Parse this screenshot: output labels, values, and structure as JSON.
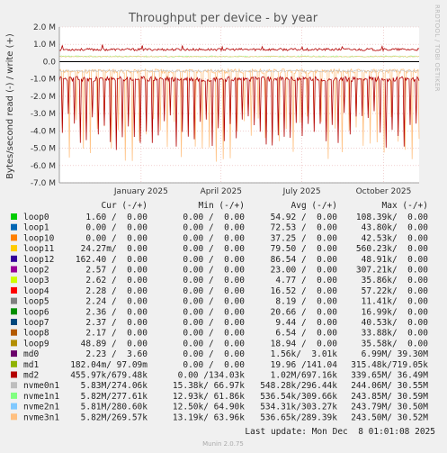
{
  "chart_data": {
    "type": "line",
    "title": "Throughput per device - by year",
    "ylabel": "Bytes/second read (-) / write (+)",
    "side_label": "RRDTOOL / TOBI OETIKER",
    "ylim": [
      -7000000,
      2000000
    ],
    "y_ticks": [
      {
        "value": 2000000,
        "label": "2.0 M"
      },
      {
        "value": 1000000,
        "label": "1.0 M"
      },
      {
        "value": 0,
        "label": "0.0"
      },
      {
        "value": -1000000,
        "label": "-1.0 M"
      },
      {
        "value": -2000000,
        "label": "-2.0 M"
      },
      {
        "value": -3000000,
        "label": "-3.0 M"
      },
      {
        "value": -4000000,
        "label": "-4.0 M"
      },
      {
        "value": -5000000,
        "label": "-5.0 M"
      },
      {
        "value": -6000000,
        "label": "-6.0 M"
      },
      {
        "value": -7000000,
        "label": "-7.0 M"
      }
    ],
    "x_range_days": [
      0,
      405
    ],
    "x_ticks": [
      {
        "day": 92,
        "label": "January 2025"
      },
      {
        "day": 182,
        "label": "April 2025"
      },
      {
        "day": 273,
        "label": "July 2025"
      },
      {
        "day": 365,
        "label": "October 2025"
      }
    ],
    "grid": true,
    "columns": {
      "cur": "Cur (-/+)",
      "min": "Min (-/+)",
      "avg": "Avg (-/+)",
      "max": "Max (-/+)"
    },
    "series": [
      {
        "name": "loop0",
        "color": "#00cc00",
        "cur": "1.60 /  0.00",
        "min": "0.00 /  0.00",
        "avg": "54.92 /  0.00",
        "max": "108.39k/  0.00"
      },
      {
        "name": "loop1",
        "color": "#0066b3",
        "cur": "0.00 /  0.00",
        "min": "0.00 /  0.00",
        "avg": "72.53 /  0.00",
        "max": "43.80k/  0.00"
      },
      {
        "name": "loop10",
        "color": "#ff8000",
        "cur": "0.00 /  0.00",
        "min": "0.00 /  0.00",
        "avg": "37.25 /  0.00",
        "max": "42.53k/  0.00"
      },
      {
        "name": "loop11",
        "color": "#ffcc00",
        "cur": "24.27m/  0.00",
        "min": "0.00 /  0.00",
        "avg": "79.50 /  0.00",
        "max": "560.23k/  0.00"
      },
      {
        "name": "loop12",
        "color": "#330099",
        "cur": "162.40 /  0.00",
        "min": "0.00 /  0.00",
        "avg": "86.54 /  0.00",
        "max": "48.91k/  0.00"
      },
      {
        "name": "loop2",
        "color": "#990099",
        "cur": "2.57 /  0.00",
        "min": "0.00 /  0.00",
        "avg": "23.00 /  0.00",
        "max": "307.21k/  0.00"
      },
      {
        "name": "loop3",
        "color": "#ccff00",
        "cur": "2.62 /  0.00",
        "min": "0.00 /  0.00",
        "avg": "4.77 /  0.00",
        "max": "35.86k/  0.00"
      },
      {
        "name": "loop4",
        "color": "#ff0000",
        "cur": "2.28 /  0.00",
        "min": "0.00 /  0.00",
        "avg": "16.52 /  0.00",
        "max": "57.22k/  0.00"
      },
      {
        "name": "loop5",
        "color": "#808080",
        "cur": "2.24 /  0.00",
        "min": "0.00 /  0.00",
        "avg": "8.19 /  0.00",
        "max": "11.41k/  0.00"
      },
      {
        "name": "loop6",
        "color": "#008f00",
        "cur": "2.36 /  0.00",
        "min": "0.00 /  0.00",
        "avg": "20.66 /  0.00",
        "max": "16.99k/  0.00"
      },
      {
        "name": "loop7",
        "color": "#00487d",
        "cur": "2.37 /  0.00",
        "min": "0.00 /  0.00",
        "avg": "9.44 /  0.00",
        "max": "40.53k/  0.00"
      },
      {
        "name": "loop8",
        "color": "#b35a00",
        "cur": "2.17 /  0.00",
        "min": "0.00 /  0.00",
        "avg": "6.54 /  0.00",
        "max": "33.88k/  0.00"
      },
      {
        "name": "loop9",
        "color": "#b38f00",
        "cur": "48.89 /  0.00",
        "min": "0.00 /  0.00",
        "avg": "18.94 /  0.00",
        "max": "35.58k/  0.00"
      },
      {
        "name": "md0",
        "color": "#6b006b",
        "cur": "2.23 /  3.60",
        "min": "0.00 /  0.00",
        "avg": "1.56k/  3.01k",
        "max": "6.99M/ 39.30M"
      },
      {
        "name": "md1",
        "color": "#8fb300",
        "cur": "182.04m/ 97.09m",
        "min": "0.00 /  0.00",
        "avg": "19.96 /141.04",
        "max": "315.48k/719.05k"
      },
      {
        "name": "md2",
        "color": "#b30000",
        "cur": "455.97k/679.48k",
        "min": "0.00 /134.03k",
        "avg": "1.02M/697.16k",
        "max": "339.65M/ 36.49M"
      },
      {
        "name": "nvme0n1",
        "color": "#bebebe",
        "cur": "5.83M/274.06k",
        "min": "15.38k/ 66.97k",
        "avg": "548.28k/296.44k",
        "max": "244.06M/ 30.55M"
      },
      {
        "name": "nvme1n1",
        "color": "#80ff80",
        "cur": "5.82M/277.61k",
        "min": "12.93k/ 61.86k",
        "avg": "536.54k/309.66k",
        "max": "243.85M/ 30.59M"
      },
      {
        "name": "nvme2n1",
        "color": "#80c9ff",
        "cur": "5.81M/280.60k",
        "min": "12.50k/ 64.90k",
        "avg": "534.31k/303.27k",
        "max": "243.79M/ 30.50M"
      },
      {
        "name": "nvme3n1",
        "color": "#ffc080",
        "cur": "5.82M/269.57k",
        "min": "13.19k/ 63.96k",
        "avg": "536.65k/289.39k",
        "max": "243.50M/ 30.52M"
      }
    ],
    "last_update": "Last update: Mon Dec  8 01:01:08 2025",
    "footer": "Munin 2.0.75"
  }
}
